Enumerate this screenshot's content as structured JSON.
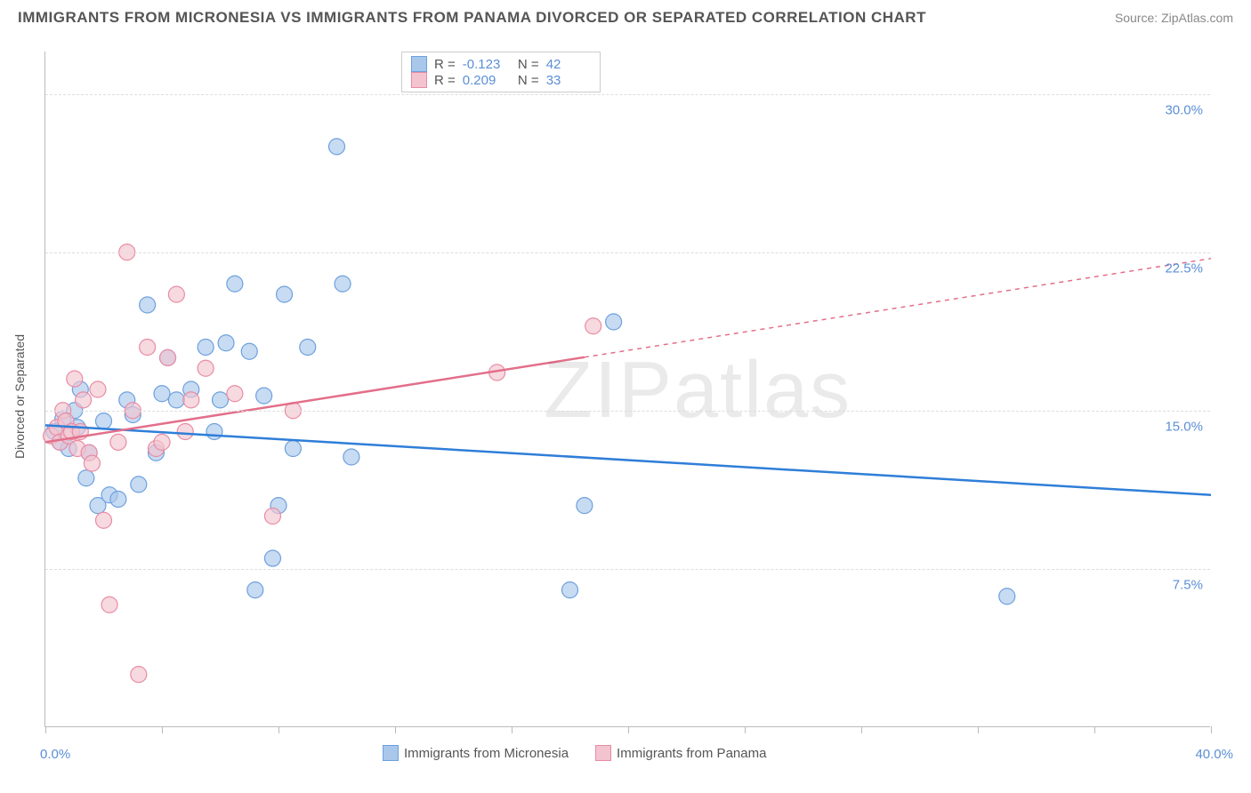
{
  "title": "IMMIGRANTS FROM MICRONESIA VS IMMIGRANTS FROM PANAMA DIVORCED OR SEPARATED CORRELATION CHART",
  "source": "Source: ZipAtlas.com",
  "y_axis_label": "Divorced or Separated",
  "watermark": "ZIPatlas",
  "chart": {
    "type": "scatter",
    "x_range": [
      0,
      40
    ],
    "y_range": [
      0,
      32
    ],
    "x_ticks_pct": [
      0,
      4,
      8,
      12,
      16,
      20,
      24,
      28,
      32,
      36,
      40
    ],
    "y_gridlines": [
      7.5,
      15.0,
      22.5,
      30.0
    ],
    "y_tick_labels": [
      "7.5%",
      "15.0%",
      "22.5%",
      "30.0%"
    ],
    "x_min_label": "0.0%",
    "x_max_label": "40.0%",
    "background_color": "#ffffff",
    "grid_color": "#dddddd",
    "axis_color": "#bbbbbb",
    "label_color": "#5b8fd6"
  },
  "series": [
    {
      "name": "Immigrants from Micronesia",
      "color_fill": "#a9c7eb",
      "color_stroke": "#6da0de",
      "line_color": "#2f7ed8",
      "r_value": "-0.123",
      "n_value": "42",
      "marker_radius": 9,
      "trend": {
        "x1": 0,
        "y1": 14.3,
        "x2": 40,
        "y2": 11.0,
        "solid_until_x": 40
      },
      "points": [
        [
          0.3,
          14.0
        ],
        [
          0.5,
          13.5
        ],
        [
          0.6,
          14.6
        ],
        [
          0.8,
          13.2
        ],
        [
          1.0,
          15.0
        ],
        [
          1.1,
          14.2
        ],
        [
          1.2,
          16.0
        ],
        [
          1.4,
          11.8
        ],
        [
          1.5,
          13.0
        ],
        [
          1.8,
          10.5
        ],
        [
          2.0,
          14.5
        ],
        [
          2.2,
          11.0
        ],
        [
          2.5,
          10.8
        ],
        [
          2.8,
          15.5
        ],
        [
          3.0,
          14.8
        ],
        [
          3.2,
          11.5
        ],
        [
          3.5,
          20.0
        ],
        [
          3.8,
          13.0
        ],
        [
          4.0,
          15.8
        ],
        [
          4.2,
          17.5
        ],
        [
          4.5,
          15.5
        ],
        [
          5.0,
          16.0
        ],
        [
          5.5,
          18.0
        ],
        [
          5.8,
          14.0
        ],
        [
          6.0,
          15.5
        ],
        [
          6.2,
          18.2
        ],
        [
          6.5,
          21.0
        ],
        [
          7.0,
          17.8
        ],
        [
          7.2,
          6.5
        ],
        [
          7.5,
          15.7
        ],
        [
          7.8,
          8.0
        ],
        [
          8.0,
          10.5
        ],
        [
          8.2,
          20.5
        ],
        [
          8.5,
          13.2
        ],
        [
          9.0,
          18.0
        ],
        [
          10.0,
          27.5
        ],
        [
          10.2,
          21.0
        ],
        [
          10.5,
          12.8
        ],
        [
          18.0,
          6.5
        ],
        [
          18.5,
          10.5
        ],
        [
          19.5,
          19.2
        ],
        [
          33.0,
          6.2
        ]
      ]
    },
    {
      "name": "Immigrants from Panama",
      "color_fill": "#f3c4d0",
      "color_stroke": "#e88ba4",
      "line_color": "#e36f8a",
      "r_value": "0.209",
      "n_value": "33",
      "marker_radius": 9,
      "trend": {
        "x1": 0,
        "y1": 13.5,
        "x2": 40,
        "y2": 22.2,
        "solid_until_x": 18.5
      },
      "points": [
        [
          0.2,
          13.8
        ],
        [
          0.4,
          14.2
        ],
        [
          0.5,
          13.5
        ],
        [
          0.6,
          15.0
        ],
        [
          0.7,
          14.5
        ],
        [
          0.8,
          13.8
        ],
        [
          0.9,
          14.0
        ],
        [
          1.0,
          16.5
        ],
        [
          1.1,
          13.2
        ],
        [
          1.2,
          14.0
        ],
        [
          1.3,
          15.5
        ],
        [
          1.5,
          13.0
        ],
        [
          1.6,
          12.5
        ],
        [
          1.8,
          16.0
        ],
        [
          2.0,
          9.8
        ],
        [
          2.2,
          5.8
        ],
        [
          2.5,
          13.5
        ],
        [
          2.8,
          22.5
        ],
        [
          3.0,
          15.0
        ],
        [
          3.2,
          2.5
        ],
        [
          3.5,
          18.0
        ],
        [
          3.8,
          13.2
        ],
        [
          4.0,
          13.5
        ],
        [
          4.2,
          17.5
        ],
        [
          4.5,
          20.5
        ],
        [
          4.8,
          14.0
        ],
        [
          5.0,
          15.5
        ],
        [
          5.5,
          17.0
        ],
        [
          6.5,
          15.8
        ],
        [
          7.8,
          10.0
        ],
        [
          8.5,
          15.0
        ],
        [
          15.5,
          16.8
        ],
        [
          18.8,
          19.0
        ]
      ]
    }
  ],
  "legend": {
    "items": [
      "Immigrants from Micronesia",
      "Immigrants from Panama"
    ]
  }
}
